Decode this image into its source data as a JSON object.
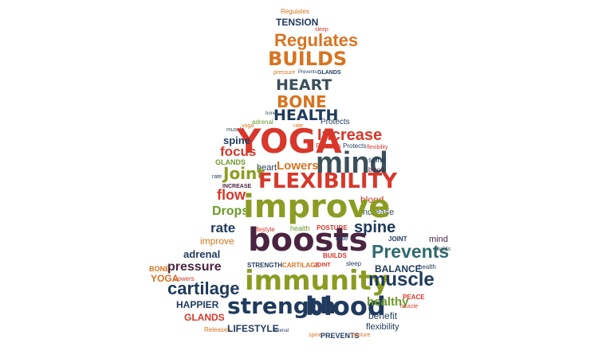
{
  "palette": {
    "red": "#d8372a",
    "orange": "#d8731f",
    "olive": "#8b9c22",
    "green": "#6b9a2a",
    "navy": "#1f3a5c",
    "plum": "#4a2440",
    "slate": "#3c5058",
    "teal": "#2f6a6e"
  },
  "words": [
    "Regulates",
    "TENSION",
    "sleep",
    "Regulates",
    "BUILDS",
    "pressure",
    "Prevents",
    "GLANDS",
    "HEART",
    "BONE",
    "bone",
    "HEALTH",
    "Protects",
    "Increase",
    "yoga",
    "adrenal",
    "rate",
    "muscle",
    "YOGA",
    "Prevents",
    "Protects",
    "spine",
    "focus",
    "mind",
    "GLANDS",
    "flexibility",
    "spine",
    "blood",
    "heart",
    "Lowers",
    "Joint",
    "INCREASE",
    "FLEXIBILITY",
    "rate",
    "flow",
    "blood",
    "Increase",
    "Drops",
    "improve",
    "lifestyle",
    "health",
    "POSTURE",
    "spine",
    "JOINT",
    "rate",
    "improve",
    "boosts",
    "mind",
    "adrenal",
    "Prevents",
    "BONE",
    "pressure",
    "YOGA",
    "Lowers",
    "STRENGTH",
    "CARTILAGE",
    "JOINT",
    "BALANCE",
    "health",
    "immunity",
    "muscle",
    "cartilage",
    "HAPPIER",
    "PEACE",
    "GLANDS",
    "strength",
    "blood",
    "healthy",
    "benefit",
    "muscle",
    "Releases",
    "LIFESTYLE",
    "adrenal",
    "spine",
    "PREVENTS",
    "posture",
    "flexibility",
    "BUILDS",
    "sleep",
    "rate",
    "Builds"
  ]
}
